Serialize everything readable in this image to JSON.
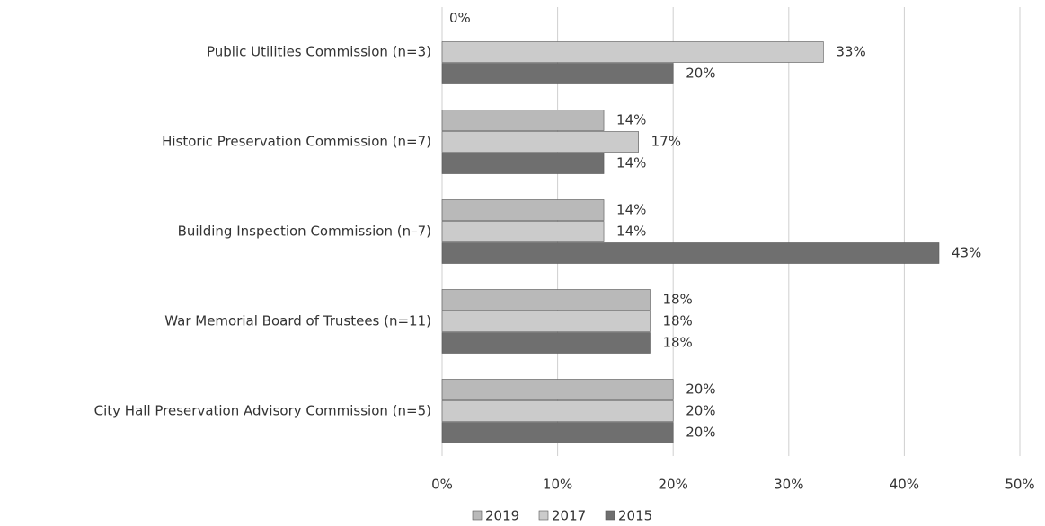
{
  "chart_data": {
    "type": "hbar",
    "categories": [
      "Public Utilities Commission (n=3)",
      "Historic Preservation Commission (n=7)",
      "Building Inspection Commission (n–7)",
      "War Memorial Board of Trustees (n=11)",
      "City Hall Preservation Advisory Commission (n=5)"
    ],
    "series": [
      {
        "name": "2019",
        "color": "#b9b9b9",
        "values": [
          0,
          14,
          14,
          18,
          20
        ],
        "value_labels": [
          "0%",
          "14%",
          "14%",
          "18%",
          "20%"
        ]
      },
      {
        "name": "2017",
        "color": "#cbcbcb",
        "values": [
          33,
          17,
          14,
          18,
          20
        ],
        "value_labels": [
          "33%",
          "17%",
          "14%",
          "18%",
          "20%"
        ]
      },
      {
        "name": "2015",
        "color": "#6f6f6f",
        "values": [
          20,
          14,
          43,
          18,
          20
        ],
        "value_labels": [
          "20%",
          "14%",
          "43%",
          "18%",
          "20%"
        ]
      }
    ],
    "xlim": [
      0,
      50
    ],
    "xticks": [
      {
        "value": 0,
        "label": "0%"
      },
      {
        "value": 10,
        "label": "10%"
      },
      {
        "value": 20,
        "label": "20%"
      },
      {
        "value": 30,
        "label": "30%"
      },
      {
        "value": 40,
        "label": "40%"
      },
      {
        "value": 50,
        "label": "50%"
      }
    ],
    "grid": true,
    "legend": "bottom"
  }
}
